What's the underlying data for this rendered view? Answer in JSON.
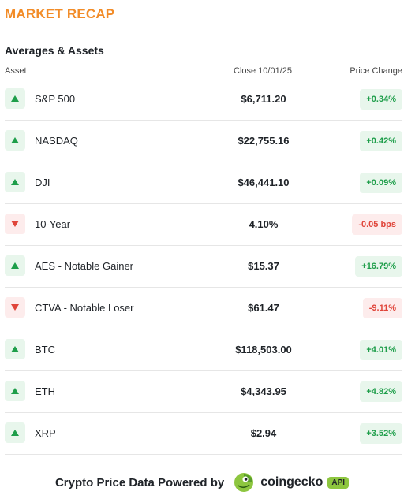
{
  "header": {
    "title": "MARKET RECAP",
    "subtitle": "Averages & Assets"
  },
  "columns": {
    "asset": "Asset",
    "close": "Close 10/01/25",
    "change": "Price Change"
  },
  "rows": [
    {
      "name": "S&P 500",
      "close": "$6,711.20",
      "change": "+0.34%",
      "direction": "up"
    },
    {
      "name": "NASDAQ",
      "close": "$22,755.16",
      "change": "+0.42%",
      "direction": "up"
    },
    {
      "name": "DJI",
      "close": "$46,441.10",
      "change": "+0.09%",
      "direction": "up"
    },
    {
      "name": "10-Year",
      "close": "4.10%",
      "change": "-0.05 bps",
      "direction": "down"
    },
    {
      "name": "AES - Notable Gainer",
      "close": "$15.37",
      "change": "+16.79%",
      "direction": "up"
    },
    {
      "name": "CTVA - Notable Loser",
      "close": "$61.47",
      "change": "-9.11%",
      "direction": "down"
    },
    {
      "name": "BTC",
      "close": "$118,503.00",
      "change": "+4.01%",
      "direction": "up"
    },
    {
      "name": "ETH",
      "close": "$4,343.95",
      "change": "+4.82%",
      "direction": "up"
    },
    {
      "name": "XRP",
      "close": "$2.94",
      "change": "+3.52%",
      "direction": "up"
    }
  ],
  "footer": {
    "text": "Crypto Price Data Powered by",
    "brand": "coingecko",
    "badge": "API",
    "logo_icon": "coingecko-gecko-icon"
  },
  "colors": {
    "title": "#f28c28",
    "up": "#1e9e4a",
    "up_bg": "#e8f6ec",
    "down": "#e0453a",
    "down_bg": "#fdecec",
    "badge": "#8dc63f"
  }
}
